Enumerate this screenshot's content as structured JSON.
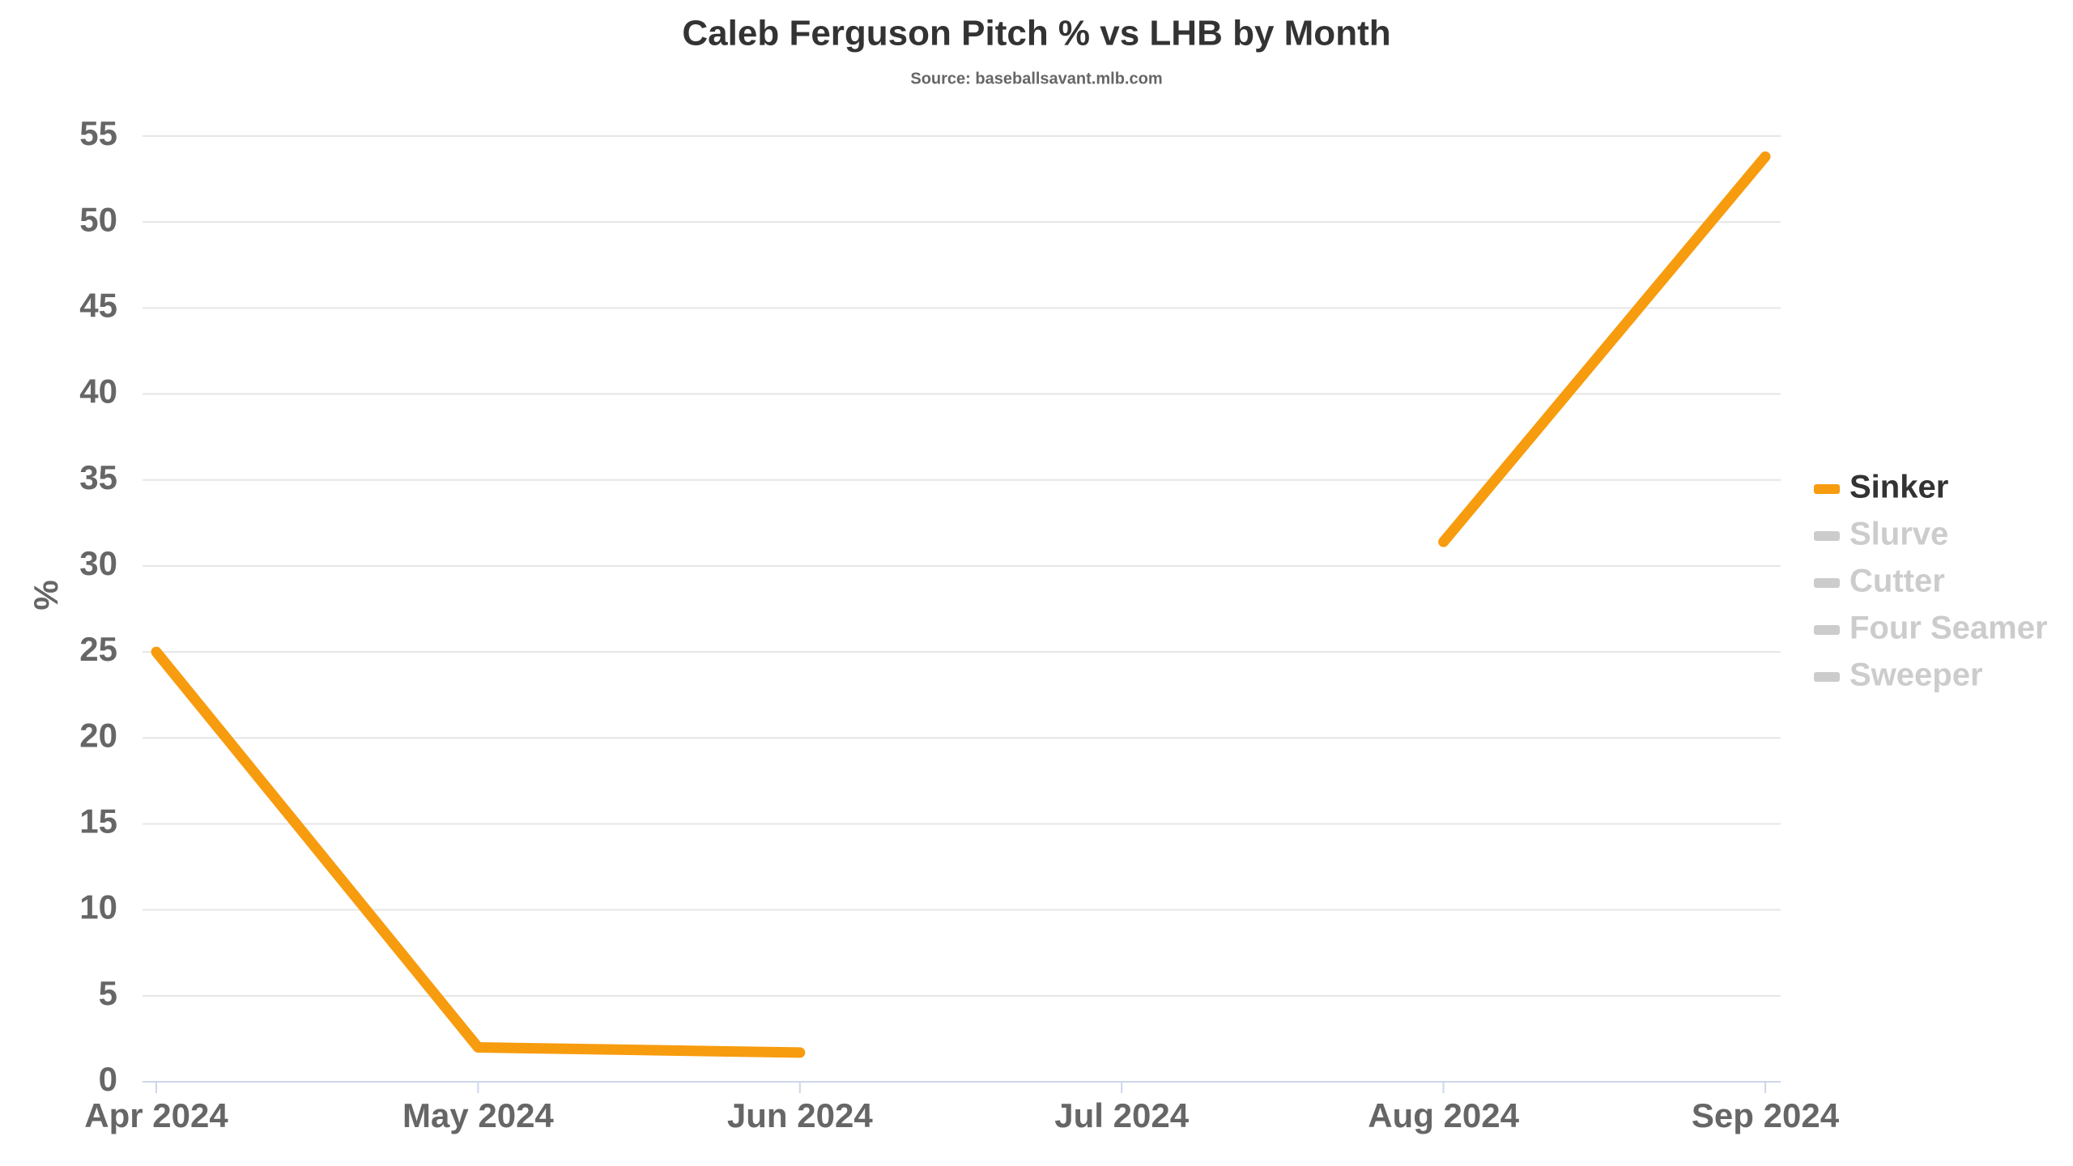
{
  "chart_data": {
    "type": "line",
    "title": "Caleb Ferguson Pitch % vs LHB by Month",
    "subtitle": "Source: baseballsavant.mlb.com",
    "y_label": "%",
    "categories": [
      "Apr 2024",
      "May 2024",
      "Jun 2024",
      "Jul 2024",
      "Aug 2024",
      "Sep 2024"
    ],
    "series": [
      {
        "name": "Sinker",
        "color": "#f79c0e",
        "visible": true,
        "values": [
          25,
          2,
          1.7,
          null,
          31.4,
          53.8
        ]
      },
      {
        "name": "Slurve",
        "color": "#cccccc",
        "visible": false,
        "values": [
          null,
          null,
          null,
          null,
          null,
          null
        ]
      },
      {
        "name": "Cutter",
        "color": "#cccccc",
        "visible": false,
        "values": [
          null,
          null,
          null,
          null,
          null,
          null
        ]
      },
      {
        "name": "Four Seamer",
        "color": "#cccccc",
        "visible": false,
        "values": [
          null,
          null,
          null,
          null,
          null,
          null
        ]
      },
      {
        "name": "Sweeper",
        "color": "#cccccc",
        "visible": false,
        "values": [
          null,
          null,
          null,
          null,
          null,
          null
        ]
      }
    ],
    "ylim": [
      0,
      55
    ],
    "yticks": [
      0,
      5,
      10,
      15,
      20,
      25,
      30,
      35,
      40,
      45,
      50,
      55
    ],
    "grid": true,
    "legend": "right"
  }
}
